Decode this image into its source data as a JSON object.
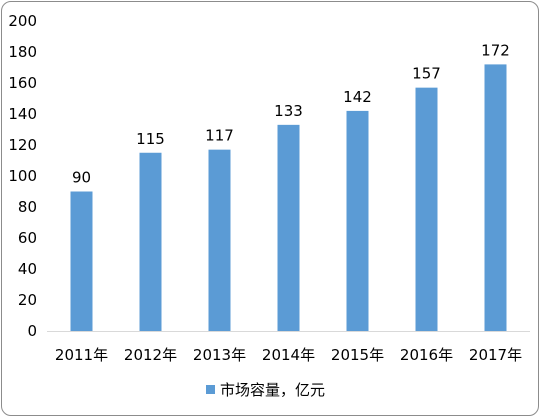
{
  "chart_data": {
    "type": "bar",
    "categories": [
      "2011年",
      "2012年",
      "2013年",
      "2014年",
      "2015年",
      "2016年",
      "2017年"
    ],
    "series": [
      {
        "name": "市场容量，亿元",
        "values": [
          90,
          115,
          117,
          133,
          142,
          157,
          172
        ],
        "color": "#5b9bd5"
      }
    ],
    "ylim": [
      0,
      200
    ],
    "yticks": [
      0,
      20,
      40,
      60,
      80,
      100,
      120,
      140,
      160,
      180,
      200
    ],
    "grid": false,
    "legend": "bottom",
    "data_labels": true
  }
}
